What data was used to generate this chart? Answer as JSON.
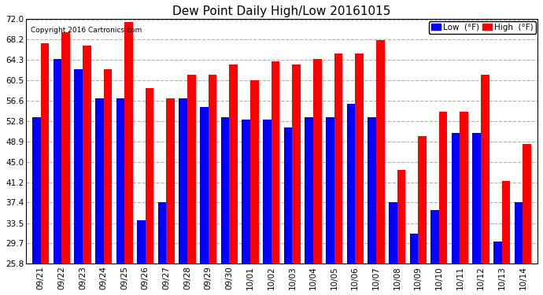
{
  "title": "Dew Point Daily High/Low 20161015",
  "copyright": "Copyright 2016 Cartronics.com",
  "dates": [
    "09/21",
    "09/22",
    "09/23",
    "09/24",
    "09/25",
    "09/26",
    "09/27",
    "09/28",
    "09/29",
    "09/30",
    "10/01",
    "10/02",
    "10/03",
    "10/04",
    "10/05",
    "10/06",
    "10/07",
    "10/08",
    "10/09",
    "10/10",
    "10/11",
    "10/12",
    "10/13",
    "10/14"
  ],
  "high": [
    67.5,
    69.5,
    67.0,
    62.5,
    71.5,
    59.0,
    57.0,
    61.5,
    61.5,
    63.5,
    60.5,
    64.0,
    63.5,
    64.5,
    65.5,
    65.5,
    68.0,
    43.5,
    50.0,
    54.5,
    54.5,
    61.5,
    41.5,
    48.5
  ],
  "low": [
    53.5,
    64.5,
    62.5,
    57.0,
    57.0,
    34.0,
    37.5,
    57.0,
    55.5,
    53.5,
    53.0,
    53.0,
    51.5,
    53.5,
    53.5,
    56.0,
    53.5,
    37.5,
    31.5,
    36.0,
    50.5,
    50.5,
    30.0,
    37.5
  ],
  "ylim": [
    25.8,
    72.0
  ],
  "yticks": [
    25.8,
    29.7,
    33.5,
    37.4,
    41.2,
    45.0,
    48.9,
    52.8,
    56.6,
    60.5,
    64.3,
    68.2,
    72.0
  ],
  "low_color": "#0000ff",
  "high_color": "#ff0000",
  "bg_color": "#ffffff",
  "grid_color": "#b0b0b0",
  "bar_width": 0.4,
  "figwidth": 6.9,
  "figheight": 3.75,
  "dpi": 100
}
